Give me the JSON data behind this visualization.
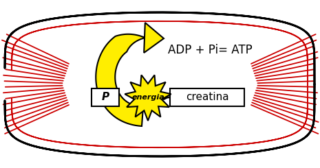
{
  "bg_color": "#ffffff",
  "muscle_outline_color": "#000000",
  "red_fiber_color": "#cc0000",
  "box_p_text": "P",
  "box_creatina_text": "creatina",
  "energia_text": "energia",
  "equation_text": "ADP + Pi= ATP",
  "arrow_color": "#ffee00",
  "arrow_edge_color": "#000000",
  "starburst_color": "#ffee00",
  "starburst_edge_color": "#000000",
  "box_fill": "#ffffff",
  "box_edge": "#000000",
  "figsize": [
    4.65,
    2.45
  ],
  "dpi": 100
}
